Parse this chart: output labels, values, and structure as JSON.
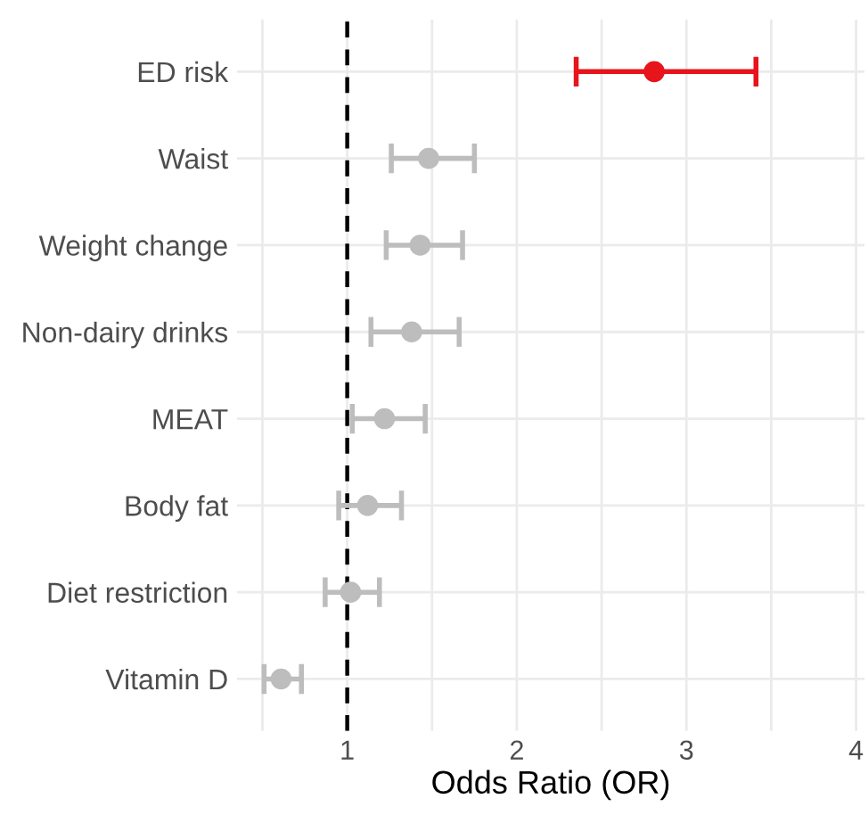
{
  "chart_data": {
    "type": "scatter",
    "orientation": "horizontal",
    "xlabel": "Odds Ratio (OR)",
    "categories": [
      "ED risk",
      "Waist",
      "Weight change",
      "Non-dairy drinks",
      "MEAT",
      "Body fat",
      "Diet restriction",
      "Vitamin D"
    ],
    "values": [
      2.81,
      1.48,
      1.43,
      1.38,
      1.22,
      1.12,
      1.02,
      0.61
    ],
    "errors": [
      [
        2.35,
        3.41
      ],
      [
        1.26,
        1.75
      ],
      [
        1.23,
        1.68
      ],
      [
        1.14,
        1.66
      ],
      [
        1.03,
        1.46
      ],
      [
        0.95,
        1.32
      ],
      [
        0.87,
        1.19
      ],
      [
        0.51,
        0.73
      ]
    ],
    "colors": [
      "#e8141c",
      "#bdbdbd",
      "#bdbdbd",
      "#bdbdbd",
      "#bdbdbd",
      "#bdbdbd",
      "#bdbdbd",
      "#bdbdbd"
    ],
    "xlim": [
      0.35,
      4.05
    ],
    "xticks": [
      {
        "value": 0.5,
        "label": null
      },
      1,
      {
        "value": 1.5,
        "label": null
      },
      2,
      {
        "value": 2.5,
        "label": null
      },
      3,
      {
        "value": 3.5,
        "label": null
      },
      4
    ],
    "ref_lines": [
      {
        "axis": "x",
        "value": 1,
        "color": "#000000",
        "line_style": "dashed"
      }
    ],
    "grid": true,
    "marker": "circle"
  }
}
